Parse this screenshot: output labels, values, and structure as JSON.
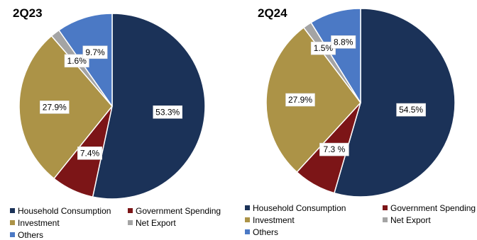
{
  "chart_data": [
    {
      "type": "pie",
      "title": "2Q23",
      "categories": [
        "Household Consumption",
        "Government Spending",
        "Investment",
        "Net Export",
        "Others"
      ],
      "values": [
        53.3,
        7.4,
        27.9,
        1.6,
        9.7
      ],
      "data_labels": [
        "53.3%",
        "7.4%",
        "27.9%",
        "1.6%",
        "9.7%"
      ],
      "colors": [
        "#1b3258",
        "#7c1517",
        "#ac9347",
        "#a4a4a4",
        "#4b79c5"
      ],
      "start_angle": "12 o'clock",
      "direction": "clockwise",
      "legend_position": "bottom"
    },
    {
      "type": "pie",
      "title": "2Q24",
      "categories": [
        "Household Consumption",
        "Government Spending",
        "Investment",
        "Net Export",
        "Others"
      ],
      "values": [
        54.5,
        7.3,
        27.9,
        1.5,
        8.8
      ],
      "data_labels": [
        "54.5%",
        "7.3 %",
        "27.9%",
        "1.5%",
        "8.8%"
      ],
      "colors": [
        "#1b3258",
        "#7c1517",
        "#ac9347",
        "#a4a4a4",
        "#4b79c5"
      ],
      "start_angle": "12 o'clock",
      "direction": "clockwise",
      "legend_position": "bottom"
    }
  ]
}
